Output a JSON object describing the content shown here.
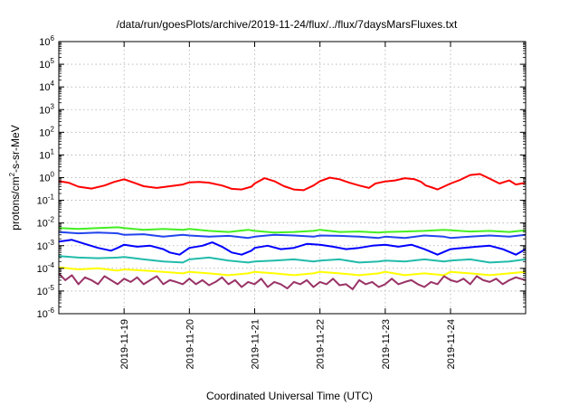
{
  "chart_data": {
    "type": "line",
    "title": "/data/run/goesPlots/archive/2019-11-24/flux/../flux/7daysMarsFluxes.txt",
    "xlabel": "Coordinated Universal Time (UTC)",
    "ylabel": {
      "prefix": "protons/cm",
      "superscript": "2",
      "suffix": "-s-sr-MeV"
    },
    "yscale": "log",
    "ylim": [
      1e-06,
      1000000.0
    ],
    "xlim": [
      0,
      7.15
    ],
    "x_unit": "days since 2019-11-18 00:00 UTC",
    "grid": true,
    "legend": "none",
    "y_ticks": [
      {
        "base": "10",
        "exp": "-6",
        "value": 1e-06
      },
      {
        "base": "10",
        "exp": "-5",
        "value": 1e-05
      },
      {
        "base": "10",
        "exp": "-4",
        "value": 0.0001
      },
      {
        "base": "10",
        "exp": "-3",
        "value": 0.001
      },
      {
        "base": "10",
        "exp": "-2",
        "value": 0.01
      },
      {
        "base": "10",
        "exp": "-1",
        "value": 0.1
      },
      {
        "base": "10",
        "exp": "0",
        "value": 1
      },
      {
        "base": "10",
        "exp": "1",
        "value": 10
      },
      {
        "base": "10",
        "exp": "2",
        "value": 100
      },
      {
        "base": "10",
        "exp": "3",
        "value": 1000
      },
      {
        "base": "10",
        "exp": "4",
        "value": 10000
      },
      {
        "base": "10",
        "exp": "5",
        "value": 100000
      },
      {
        "base": "10",
        "exp": "6",
        "value": 1000000
      }
    ],
    "x_ticks": [
      {
        "label": "2019-11-19",
        "value": 1
      },
      {
        "label": "2019-11-20",
        "value": 2
      },
      {
        "label": "2019-11-21",
        "value": 3
      },
      {
        "label": "2019-11-22",
        "value": 4
      },
      {
        "label": "2019-11-23",
        "value": 5
      },
      {
        "label": "2019-11-24",
        "value": 6
      }
    ],
    "series": [
      {
        "color": "#ff0000",
        "x": [
          0,
          0.15,
          0.3,
          0.5,
          0.7,
          0.85,
          1.0,
          1.15,
          1.3,
          1.5,
          1.7,
          1.9,
          2.0,
          2.15,
          2.3,
          2.5,
          2.65,
          2.8,
          2.95,
          3.0,
          3.15,
          3.3,
          3.45,
          3.6,
          3.75,
          3.9,
          4.0,
          4.15,
          4.3,
          4.45,
          4.6,
          4.75,
          4.85,
          5.0,
          5.15,
          5.3,
          5.45,
          5.55,
          5.62,
          5.7,
          5.8,
          6.0,
          6.15,
          6.3,
          6.45,
          6.6,
          6.75,
          6.9,
          7.0,
          7.15
        ],
        "y": [
          0.7,
          0.6,
          0.4,
          0.33,
          0.45,
          0.65,
          0.85,
          0.6,
          0.42,
          0.35,
          0.42,
          0.5,
          0.62,
          0.65,
          0.6,
          0.45,
          0.32,
          0.3,
          0.4,
          0.55,
          0.95,
          0.7,
          0.42,
          0.3,
          0.28,
          0.45,
          0.7,
          1.0,
          0.85,
          0.6,
          0.45,
          0.35,
          0.55,
          0.68,
          0.75,
          0.95,
          0.85,
          0.65,
          0.45,
          0.38,
          0.3,
          0.55,
          0.8,
          1.3,
          1.45,
          0.9,
          0.55,
          0.75,
          0.5,
          0.6
        ]
      },
      {
        "color": "#44ee22",
        "x": [
          0,
          0.3,
          0.6,
          0.9,
          1.0,
          1.3,
          1.6,
          1.9,
          2.0,
          2.3,
          2.6,
          2.9,
          3.0,
          3.3,
          3.6,
          3.9,
          4.0,
          4.3,
          4.6,
          4.9,
          5.0,
          5.3,
          5.6,
          5.9,
          6.0,
          6.3,
          6.6,
          6.9,
          7.15
        ],
        "y": [
          0.006,
          0.0055,
          0.006,
          0.0065,
          0.006,
          0.005,
          0.0055,
          0.005,
          0.0055,
          0.0045,
          0.004,
          0.005,
          0.0045,
          0.0038,
          0.004,
          0.0045,
          0.005,
          0.004,
          0.0042,
          0.0038,
          0.004,
          0.0042,
          0.0045,
          0.005,
          0.0048,
          0.0042,
          0.0045,
          0.004,
          0.0048
        ]
      },
      {
        "color": "#2244ee",
        "x": [
          0,
          0.3,
          0.6,
          0.9,
          1.0,
          1.3,
          1.6,
          1.9,
          2.0,
          2.3,
          2.6,
          2.9,
          3.0,
          3.3,
          3.6,
          3.9,
          4.0,
          4.3,
          4.6,
          4.9,
          5.0,
          5.3,
          5.6,
          5.9,
          6.0,
          6.3,
          6.6,
          6.9,
          7.15
        ],
        "y": [
          0.004,
          0.0035,
          0.0038,
          0.0035,
          0.003,
          0.0032,
          0.0025,
          0.003,
          0.0028,
          0.0025,
          0.0027,
          0.0022,
          0.0025,
          0.003,
          0.0028,
          0.0025,
          0.0028,
          0.0027,
          0.0025,
          0.0022,
          0.0025,
          0.0022,
          0.0028,
          0.0025,
          0.0022,
          0.0025,
          0.0028,
          0.0025,
          0.003
        ]
      },
      {
        "color": "#0000ff",
        "x": [
          0,
          0.2,
          0.4,
          0.6,
          0.8,
          0.9,
          1.0,
          1.2,
          1.4,
          1.6,
          1.7,
          1.85,
          2.0,
          2.2,
          2.35,
          2.5,
          2.65,
          2.8,
          2.95,
          3.0,
          3.2,
          3.4,
          3.6,
          3.8,
          4.0,
          4.2,
          4.4,
          4.6,
          4.8,
          5.0,
          5.2,
          5.4,
          5.6,
          5.8,
          6.0,
          6.2,
          6.4,
          6.6,
          6.8,
          7.0,
          7.15
        ],
        "y": [
          0.0015,
          0.0018,
          0.0012,
          0.0008,
          0.0006,
          0.0008,
          0.0011,
          0.0009,
          0.001,
          0.0007,
          0.0005,
          0.0004,
          0.0008,
          0.001,
          0.0014,
          0.0009,
          0.0005,
          0.0004,
          0.0006,
          0.0008,
          0.001,
          0.0007,
          0.0008,
          0.0012,
          0.0011,
          0.0009,
          0.0007,
          0.0008,
          0.001,
          0.0011,
          0.0009,
          0.0011,
          0.0007,
          0.0004,
          0.0007,
          0.0008,
          0.0009,
          0.001,
          0.0007,
          0.0004,
          0.0007
        ]
      },
      {
        "color": "#22bbaa",
        "x": [
          0,
          0.3,
          0.6,
          0.9,
          1.0,
          1.3,
          1.6,
          1.9,
          2.0,
          2.3,
          2.6,
          2.9,
          3.0,
          3.3,
          3.6,
          3.9,
          4.0,
          4.3,
          4.6,
          4.9,
          5.0,
          5.3,
          5.6,
          5.9,
          6.0,
          6.3,
          6.6,
          6.9,
          7.15
        ],
        "y": [
          0.00035,
          0.0003,
          0.00028,
          0.0003,
          0.00032,
          0.00025,
          0.0002,
          0.00018,
          0.00025,
          0.0003,
          0.00022,
          0.00018,
          0.0002,
          0.00022,
          0.00025,
          0.0002,
          0.00022,
          0.00025,
          0.00018,
          0.0002,
          0.00022,
          0.0002,
          0.00025,
          0.0002,
          0.00022,
          0.00025,
          0.00018,
          0.0002,
          0.00025
        ]
      },
      {
        "color": "#ffff00",
        "x": [
          0,
          0.3,
          0.6,
          0.9,
          1.0,
          1.3,
          1.6,
          1.9,
          2.0,
          2.3,
          2.6,
          2.9,
          3.0,
          3.3,
          3.6,
          3.9,
          4.0,
          4.3,
          4.6,
          4.9,
          5.0,
          5.3,
          5.6,
          5.9,
          6.0,
          6.3,
          6.6,
          6.9,
          7.15
        ],
        "y": [
          0.00011,
          9e-05,
          0.0001,
          8e-05,
          9e-05,
          8e-05,
          7e-05,
          6e-05,
          7e-05,
          6e-05,
          5e-05,
          6e-05,
          7e-05,
          6e-05,
          5e-05,
          6e-05,
          7e-05,
          6e-05,
          5e-05,
          6e-05,
          7e-05,
          5e-05,
          6e-05,
          5e-05,
          7e-05,
          6e-05,
          5e-05,
          6e-05,
          7e-05
        ]
      },
      {
        "color": "#993366",
        "x": [
          0,
          0.1,
          0.2,
          0.3,
          0.4,
          0.5,
          0.6,
          0.7,
          0.8,
          0.9,
          1.0,
          1.1,
          1.2,
          1.3,
          1.4,
          1.5,
          1.6,
          1.7,
          1.8,
          1.9,
          2.0,
          2.1,
          2.2,
          2.3,
          2.4,
          2.5,
          2.6,
          2.7,
          2.8,
          2.9,
          3.0,
          3.1,
          3.2,
          3.3,
          3.4,
          3.5,
          3.6,
          3.7,
          3.8,
          3.9,
          4.0,
          4.1,
          4.2,
          4.3,
          4.4,
          4.5,
          4.6,
          4.7,
          4.8,
          4.9,
          5.0,
          5.1,
          5.2,
          5.3,
          5.4,
          5.5,
          5.6,
          5.7,
          5.8,
          5.9,
          6.0,
          6.1,
          6.2,
          6.3,
          6.4,
          6.5,
          6.6,
          6.7,
          6.8,
          6.9,
          7.0,
          7.15
        ],
        "y": [
          6e-05,
          3e-05,
          5e-05,
          2e-05,
          4e-05,
          3e-05,
          2e-05,
          4.5e-05,
          3e-05,
          2e-05,
          3.5e-05,
          2.5e-05,
          4e-05,
          2e-05,
          3e-05,
          4.5e-05,
          2e-05,
          3e-05,
          2.5e-05,
          2e-05,
          3.5e-05,
          2e-05,
          3e-05,
          1.8e-05,
          2.5e-05,
          4e-05,
          2e-05,
          3e-05,
          1.5e-05,
          2.5e-05,
          2e-05,
          3.5e-05,
          1.5e-05,
          2.5e-05,
          2e-05,
          1.3e-05,
          2.5e-05,
          2e-05,
          3e-05,
          1.5e-05,
          2.5e-05,
          2e-05,
          3.5e-05,
          1.8e-05,
          2e-05,
          1.2e-05,
          3e-05,
          2e-05,
          2.5e-05,
          1.5e-05,
          2e-05,
          3.5e-05,
          2e-05,
          2.5e-05,
          3e-05,
          2e-05,
          1.5e-05,
          2.5e-05,
          2e-05,
          4.5e-05,
          3e-05,
          2.5e-05,
          3.5e-05,
          2e-05,
          4.5e-05,
          3e-05,
          2.5e-05,
          3.5e-05,
          2e-05,
          3e-05,
          4e-05,
          3e-05
        ]
      }
    ]
  }
}
